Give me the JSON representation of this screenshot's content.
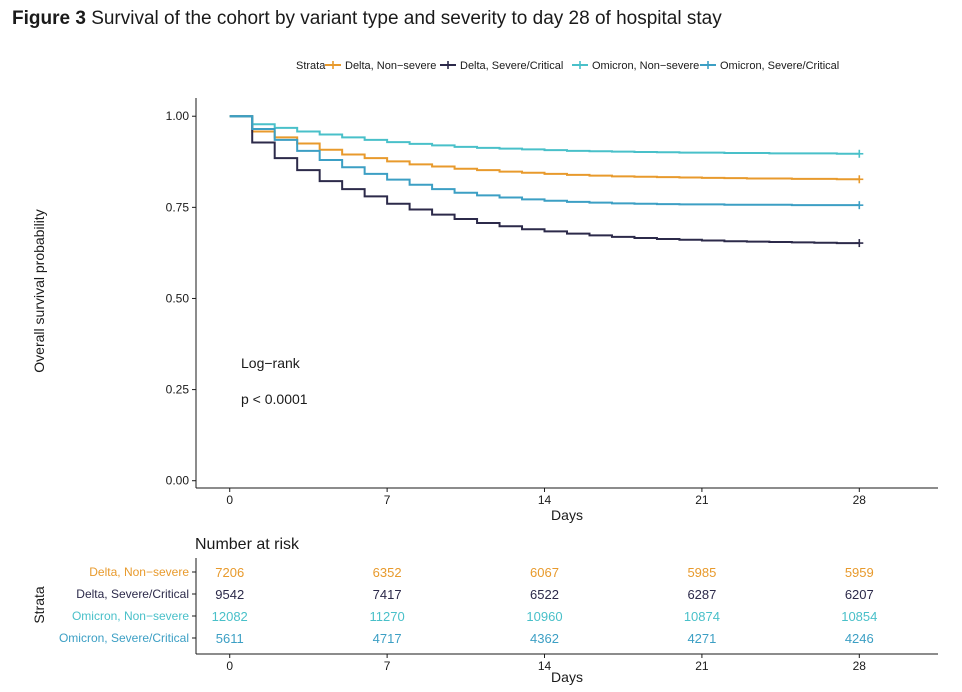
{
  "figure": {
    "label": "Figure 3",
    "caption": "Survival of the cohort by variant type and severity to day 28 of hospital stay"
  },
  "chart_data": {
    "type": "line",
    "subtype": "kaplan-meier step",
    "xlabel": "Days",
    "ylabel": "Overall survival probability",
    "xlim": [
      -1.5,
      31.5
    ],
    "ylim": [
      -0.02,
      1.05
    ],
    "x_ticks": [
      0,
      7,
      14,
      21,
      28
    ],
    "x_tick_labels": [
      "0",
      "7",
      "14",
      "21",
      "28"
    ],
    "y_ticks": [
      0,
      0.25,
      0.5,
      0.75,
      1.0
    ],
    "y_tick_labels": [
      "0.00",
      "0.25",
      "0.50",
      "0.75",
      "1.00"
    ],
    "grid": false,
    "legend": {
      "title": "Strata",
      "placement": "top-right"
    },
    "annotations": [
      "Log−rank",
      "p < 0.0001"
    ],
    "series": [
      {
        "name": "Delta, Non−severe",
        "color": "#E89A2C",
        "x": [
          0,
          1,
          2,
          3,
          4,
          5,
          6,
          7,
          8,
          9,
          10,
          11,
          12,
          13,
          14,
          15,
          16,
          17,
          18,
          19,
          20,
          21,
          22,
          23,
          24,
          25,
          26,
          27,
          28
        ],
        "y": [
          1.0,
          0.958,
          0.942,
          0.925,
          0.908,
          0.895,
          0.885,
          0.876,
          0.868,
          0.862,
          0.856,
          0.852,
          0.848,
          0.845,
          0.842,
          0.839,
          0.837,
          0.835,
          0.834,
          0.833,
          0.832,
          0.831,
          0.83,
          0.829,
          0.829,
          0.828,
          0.828,
          0.827,
          0.827
        ]
      },
      {
        "name": "Delta, Severe/Critical",
        "color": "#2C2A4A",
        "x": [
          0,
          1,
          2,
          3,
          4,
          5,
          6,
          7,
          8,
          9,
          10,
          11,
          12,
          13,
          14,
          15,
          16,
          17,
          18,
          19,
          20,
          21,
          22,
          23,
          24,
          25,
          26,
          27,
          28
        ],
        "y": [
          1.0,
          0.928,
          0.885,
          0.852,
          0.822,
          0.8,
          0.78,
          0.76,
          0.744,
          0.73,
          0.718,
          0.707,
          0.698,
          0.69,
          0.684,
          0.678,
          0.673,
          0.669,
          0.666,
          0.663,
          0.661,
          0.659,
          0.657,
          0.656,
          0.655,
          0.654,
          0.653,
          0.652,
          0.652
        ]
      },
      {
        "name": "Omicron, Non−severe",
        "color": "#49C0C9",
        "x": [
          0,
          1,
          2,
          3,
          4,
          5,
          6,
          7,
          8,
          9,
          10,
          11,
          12,
          13,
          14,
          15,
          16,
          17,
          18,
          19,
          20,
          21,
          22,
          23,
          24,
          25,
          26,
          27,
          28
        ],
        "y": [
          1.0,
          0.978,
          0.968,
          0.958,
          0.95,
          0.942,
          0.935,
          0.929,
          0.924,
          0.92,
          0.916,
          0.913,
          0.911,
          0.909,
          0.907,
          0.905,
          0.904,
          0.903,
          0.902,
          0.901,
          0.9,
          0.9,
          0.899,
          0.899,
          0.898,
          0.898,
          0.898,
          0.897,
          0.897
        ]
      },
      {
        "name": "Omicron, Severe/Critical",
        "color": "#3C9FC4",
        "x": [
          0,
          1,
          2,
          3,
          4,
          5,
          6,
          7,
          8,
          9,
          10,
          11,
          12,
          13,
          14,
          15,
          16,
          17,
          18,
          19,
          20,
          21,
          22,
          23,
          24,
          25,
          26,
          27,
          28
        ],
        "y": [
          1.0,
          0.965,
          0.935,
          0.905,
          0.88,
          0.86,
          0.842,
          0.826,
          0.812,
          0.8,
          0.79,
          0.783,
          0.777,
          0.772,
          0.768,
          0.765,
          0.763,
          0.761,
          0.76,
          0.759,
          0.758,
          0.758,
          0.757,
          0.757,
          0.757,
          0.756,
          0.756,
          0.756,
          0.756
        ]
      }
    ]
  },
  "risk_table": {
    "title": "Number at risk",
    "ylabel": "Strata",
    "xlabel": "Days",
    "x_ticks": [
      0,
      7,
      14,
      21,
      28
    ],
    "x_tick_labels": [
      "0",
      "7",
      "14",
      "21",
      "28"
    ],
    "rows": [
      {
        "label": "Delta, Non−severe",
        "color": "#E89A2C",
        "values": [
          "7206",
          "6352",
          "6067",
          "5985",
          "5959"
        ]
      },
      {
        "label": "Delta, Severe/Critical",
        "color": "#2C2A4A",
        "values": [
          "9542",
          "7417",
          "6522",
          "6287",
          "6207"
        ]
      },
      {
        "label": "Omicron, Non−severe",
        "color": "#49C0C9",
        "values": [
          "12082",
          "11270",
          "10960",
          "10874",
          "10854"
        ]
      },
      {
        "label": "Omicron, Severe/Critical",
        "color": "#3C9FC4",
        "values": [
          "5611",
          "4717",
          "4362",
          "4271",
          "4246"
        ]
      }
    ]
  }
}
